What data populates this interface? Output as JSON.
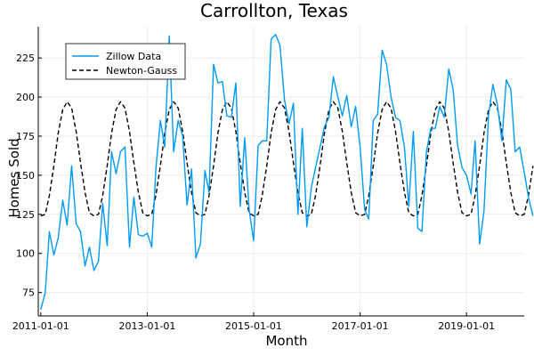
{
  "chart_data": {
    "type": "line",
    "title": "Carrollton, Texas",
    "xlabel": "Month",
    "ylabel": "Homes Sold",
    "xlim": [
      "2010-12-15",
      "2020-02-01"
    ],
    "ylim": [
      60,
      245
    ],
    "x_ticks": [
      {
        "date": "2011-01-01",
        "label": "2011-01-01"
      },
      {
        "date": "2013-01-01",
        "label": "2013-01-01"
      },
      {
        "date": "2015-01-01",
        "label": "2015-01-01"
      },
      {
        "date": "2017-01-01",
        "label": "2017-01-01"
      },
      {
        "date": "2019-01-01",
        "label": "2019-01-01"
      }
    ],
    "y_ticks": [
      {
        "value": 75,
        "label": "75"
      },
      {
        "value": 100,
        "label": "100"
      },
      {
        "value": 125,
        "label": "125"
      },
      {
        "value": 150,
        "label": "150"
      },
      {
        "value": 175,
        "label": "175"
      },
      {
        "value": 200,
        "label": "200"
      },
      {
        "value": 225,
        "label": "225"
      }
    ],
    "grid": true,
    "legend_position": "top-left",
    "start_date": "2011-01-01",
    "series": [
      {
        "name": "Zillow Data",
        "color": "#009af9",
        "style": "solid",
        "values": [
          64,
          75,
          114,
          99,
          110,
          134,
          118,
          156,
          119,
          114,
          92,
          104,
          89,
          95,
          132,
          105,
          165,
          151,
          165,
          168,
          104,
          136,
          112,
          111,
          113,
          104,
          154,
          185,
          168,
          239,
          165,
          185,
          175,
          131,
          154,
          97,
          106,
          153,
          139,
          221,
          209,
          210,
          188,
          187,
          209,
          130,
          174,
          128,
          108,
          169,
          172,
          172,
          237,
          240,
          233,
          198,
          183,
          196,
          125,
          180,
          117,
          142,
          155,
          168,
          181,
          187,
          213,
          200,
          188,
          201,
          181,
          194,
          168,
          128,
          122,
          185,
          189,
          230,
          221,
          200,
          187,
          185,
          168,
          130,
          178,
          116,
          114,
          165,
          180,
          180,
          194,
          187,
          218,
          205,
          169,
          155,
          150,
          138,
          172,
          106,
          127,
          188,
          208,
          195,
          172,
          211,
          205,
          165,
          168,
          152,
          136,
          124
        ]
      },
      {
        "name": "Newton-Gauss",
        "color": "#000000",
        "style": "dashed",
        "values": [
          124,
          125,
          137,
          156,
          177,
          192,
          197,
          193,
          178,
          158,
          139,
          126,
          124,
          125,
          137,
          156,
          177,
          192,
          197,
          193,
          178,
          158,
          139,
          126,
          124,
          125,
          137,
          156,
          177,
          192,
          197,
          193,
          178,
          158,
          139,
          126,
          124,
          125,
          137,
          156,
          177,
          192,
          197,
          193,
          178,
          158,
          139,
          126,
          124,
          125,
          137,
          156,
          177,
          192,
          197,
          193,
          178,
          158,
          139,
          126,
          124,
          125,
          137,
          156,
          177,
          192,
          197,
          193,
          178,
          158,
          139,
          126,
          124,
          125,
          137,
          156,
          177,
          192,
          197,
          193,
          178,
          158,
          139,
          126,
          124,
          125,
          137,
          156,
          177,
          192,
          197,
          193,
          178,
          158,
          139,
          126,
          124,
          125,
          137,
          156,
          177,
          192,
          197,
          193,
          178,
          158,
          139,
          126,
          124,
          125,
          137,
          156
        ]
      }
    ]
  }
}
